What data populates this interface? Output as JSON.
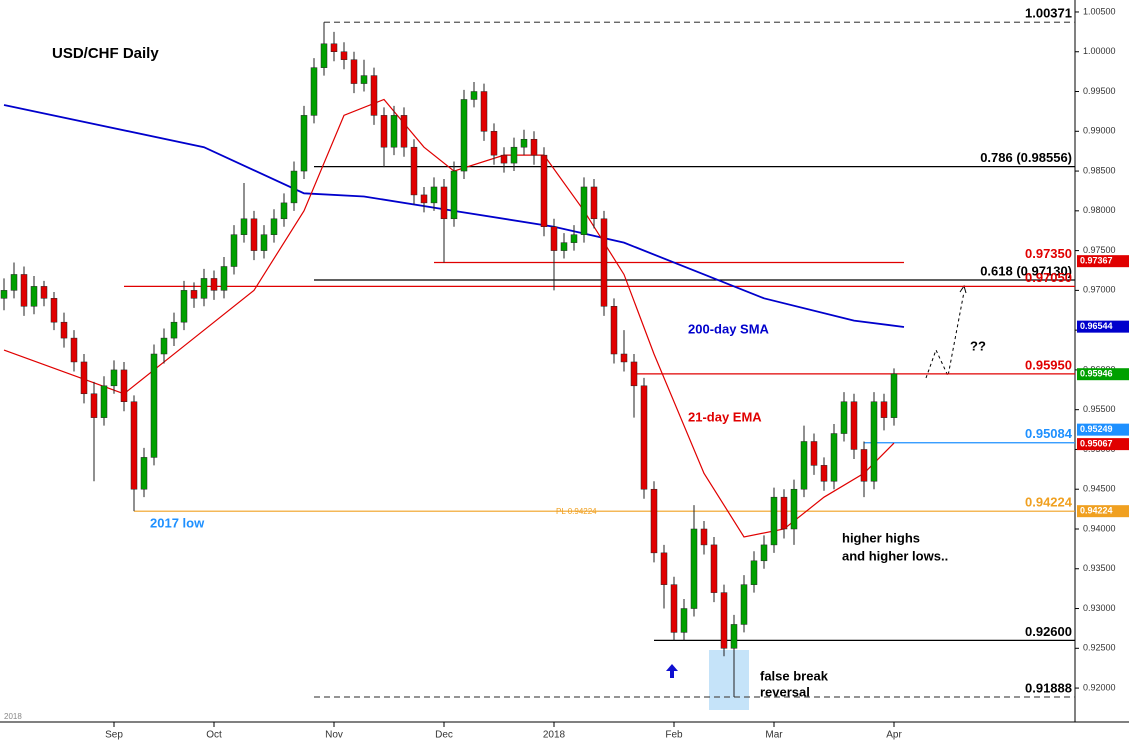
{
  "chart_data": {
    "type": "candlestick",
    "title": "USD/CHF Daily",
    "up_color": "#00a000",
    "down_color": "#e00000",
    "ylim": [
      0.9185,
      1.0055
    ],
    "yticks": [
      {
        "value": 0.92,
        "label": "0.92000"
      },
      {
        "value": 0.925,
        "label": "0.92500"
      },
      {
        "value": 0.93,
        "label": "0.93000"
      },
      {
        "value": 0.935,
        "label": "0.93500"
      },
      {
        "value": 0.94,
        "label": "0.94000"
      },
      {
        "value": 0.945,
        "label": "0.94500"
      },
      {
        "value": 0.95,
        "label": "0.95000"
      },
      {
        "value": 0.955,
        "label": "0.95500"
      },
      {
        "value": 0.96,
        "label": "0.96000"
      },
      {
        "value": 0.965,
        "label": "0.96500"
      },
      {
        "value": 0.97,
        "label": "0.97000"
      },
      {
        "value": 0.975,
        "label": "0.97500"
      },
      {
        "value": 0.98,
        "label": "0.98000"
      },
      {
        "value": 0.985,
        "label": "0.98500"
      },
      {
        "value": 0.99,
        "label": "0.99000"
      },
      {
        "value": 0.995,
        "label": "0.99500"
      },
      {
        "value": 1.0,
        "label": "1.00000"
      },
      {
        "value": 1.005,
        "label": "1.00500"
      }
    ],
    "xticks": [
      {
        "value": 11,
        "label": "Sep"
      },
      {
        "value": 21,
        "label": "Oct"
      },
      {
        "value": 33,
        "label": "Nov"
      },
      {
        "value": 44,
        "label": "Dec"
      },
      {
        "value": 55,
        "label": "2018"
      },
      {
        "value": 67,
        "label": "Feb"
      },
      {
        "value": 77,
        "label": "Mar"
      },
      {
        "value": 89,
        "label": "Apr"
      }
    ],
    "year_label": "2018",
    "ohlc": [
      [
        0.969,
        0.9715,
        0.9675,
        0.97
      ],
      [
        0.97,
        0.9735,
        0.969,
        0.972
      ],
      [
        0.972,
        0.973,
        0.9668,
        0.968
      ],
      [
        0.968,
        0.9718,
        0.967,
        0.9705
      ],
      [
        0.9705,
        0.9712,
        0.968,
        0.969
      ],
      [
        0.969,
        0.9698,
        0.965,
        0.966
      ],
      [
        0.966,
        0.9672,
        0.9628,
        0.964
      ],
      [
        0.964,
        0.965,
        0.9598,
        0.961
      ],
      [
        0.961,
        0.962,
        0.9558,
        0.957
      ],
      [
        0.957,
        0.9585,
        0.946,
        0.954
      ],
      [
        0.954,
        0.9592,
        0.953,
        0.958
      ],
      [
        0.958,
        0.9612,
        0.957,
        0.96
      ],
      [
        0.96,
        0.961,
        0.9548,
        0.956
      ],
      [
        0.956,
        0.9568,
        0.94224,
        0.945
      ],
      [
        0.945,
        0.9502,
        0.944,
        0.949
      ],
      [
        0.949,
        0.9632,
        0.948,
        0.962
      ],
      [
        0.962,
        0.9652,
        0.9608,
        0.964
      ],
      [
        0.964,
        0.9672,
        0.963,
        0.966
      ],
      [
        0.966,
        0.9712,
        0.965,
        0.97
      ],
      [
        0.97,
        0.971,
        0.9678,
        0.969
      ],
      [
        0.969,
        0.9727,
        0.968,
        0.9715
      ],
      [
        0.9715,
        0.9725,
        0.9688,
        0.97
      ],
      [
        0.97,
        0.9742,
        0.969,
        0.973
      ],
      [
        0.973,
        0.9782,
        0.972,
        0.977
      ],
      [
        0.977,
        0.9835,
        0.976,
        0.979
      ],
      [
        0.979,
        0.98,
        0.9738,
        0.975
      ],
      [
        0.975,
        0.9782,
        0.974,
        0.977
      ],
      [
        0.977,
        0.9802,
        0.976,
        0.979
      ],
      [
        0.979,
        0.9822,
        0.978,
        0.981
      ],
      [
        0.981,
        0.9862,
        0.98,
        0.985
      ],
      [
        0.985,
        0.9932,
        0.984,
        0.992
      ],
      [
        0.992,
        0.9992,
        0.991,
        0.998
      ],
      [
        0.998,
        1.00371,
        0.997,
        1.001
      ],
      [
        1.001,
        1.0025,
        0.9988,
        1.0
      ],
      [
        1.0,
        1.0012,
        0.9978,
        0.999
      ],
      [
        0.999,
        1.0,
        0.9948,
        0.996
      ],
      [
        0.996,
        0.999,
        0.995,
        0.997
      ],
      [
        0.997,
        0.998,
        0.9908,
        0.992
      ],
      [
        0.992,
        0.993,
        0.9855,
        0.988
      ],
      [
        0.988,
        0.9932,
        0.987,
        0.992
      ],
      [
        0.992,
        0.993,
        0.9868,
        0.988
      ],
      [
        0.988,
        0.989,
        0.9808,
        0.982
      ],
      [
        0.982,
        0.983,
        0.9798,
        0.981
      ],
      [
        0.981,
        0.9842,
        0.98,
        0.983
      ],
      [
        0.983,
        0.984,
        0.9735,
        0.979
      ],
      [
        0.979,
        0.9862,
        0.978,
        0.985
      ],
      [
        0.985,
        0.9952,
        0.984,
        0.994
      ],
      [
        0.994,
        0.9962,
        0.993,
        0.995
      ],
      [
        0.995,
        0.996,
        0.9888,
        0.99
      ],
      [
        0.99,
        0.991,
        0.9858,
        0.987
      ],
      [
        0.987,
        0.988,
        0.9848,
        0.986
      ],
      [
        0.986,
        0.9892,
        0.985,
        0.988
      ],
      [
        0.988,
        0.9902,
        0.987,
        0.989
      ],
      [
        0.989,
        0.99,
        0.9858,
        0.987
      ],
      [
        0.987,
        0.988,
        0.9768,
        0.978
      ],
      [
        0.978,
        0.979,
        0.97,
        0.975
      ],
      [
        0.975,
        0.9772,
        0.974,
        0.976
      ],
      [
        0.976,
        0.9782,
        0.975,
        0.977
      ],
      [
        0.977,
        0.9842,
        0.976,
        0.983
      ],
      [
        0.983,
        0.984,
        0.9778,
        0.979
      ],
      [
        0.979,
        0.98,
        0.9668,
        0.968
      ],
      [
        0.968,
        0.969,
        0.9608,
        0.962
      ],
      [
        0.962,
        0.965,
        0.9598,
        0.961
      ],
      [
        0.961,
        0.962,
        0.954,
        0.958
      ],
      [
        0.958,
        0.959,
        0.9438,
        0.945
      ],
      [
        0.945,
        0.946,
        0.9358,
        0.937
      ],
      [
        0.937,
        0.938,
        0.93,
        0.933
      ],
      [
        0.933,
        0.934,
        0.926,
        0.927
      ],
      [
        0.927,
        0.9312,
        0.926,
        0.93
      ],
      [
        0.93,
        0.943,
        0.929,
        0.94
      ],
      [
        0.94,
        0.941,
        0.9368,
        0.938
      ],
      [
        0.938,
        0.939,
        0.9308,
        0.932
      ],
      [
        0.932,
        0.933,
        0.924,
        0.925
      ],
      [
        0.925,
        0.9292,
        0.91888,
        0.928
      ],
      [
        0.928,
        0.9342,
        0.927,
        0.933
      ],
      [
        0.933,
        0.9372,
        0.932,
        0.936
      ],
      [
        0.936,
        0.9392,
        0.935,
        0.938
      ],
      [
        0.938,
        0.9452,
        0.937,
        0.944
      ],
      [
        0.944,
        0.945,
        0.9388,
        0.94
      ],
      [
        0.94,
        0.9462,
        0.938,
        0.945
      ],
      [
        0.945,
        0.953,
        0.944,
        0.951
      ],
      [
        0.951,
        0.952,
        0.9468,
        0.948
      ],
      [
        0.948,
        0.949,
        0.9448,
        0.946
      ],
      [
        0.946,
        0.9532,
        0.945,
        0.952
      ],
      [
        0.952,
        0.9572,
        0.951,
        0.956
      ],
      [
        0.956,
        0.957,
        0.9488,
        0.95
      ],
      [
        0.95,
        0.951,
        0.944,
        0.946
      ],
      [
        0.946,
        0.9572,
        0.945,
        0.956
      ],
      [
        0.956,
        0.957,
        0.9524,
        0.954
      ],
      [
        0.954,
        0.9602,
        0.953,
        0.9595
      ]
    ],
    "series": [
      {
        "name": "200-day SMA",
        "color": "#0000cc",
        "x": [
          0,
          20,
          30,
          36,
          45,
          55,
          62,
          70,
          76,
          85,
          90
        ],
        "values": [
          0.9933,
          0.988,
          0.9822,
          0.9818,
          0.98,
          0.978,
          0.976,
          0.972,
          0.969,
          0.9662,
          0.9654
        ]
      },
      {
        "name": "21-day EMA",
        "color": "#e00000",
        "x": [
          0,
          12,
          18,
          25,
          30,
          34,
          38,
          42,
          45,
          50,
          54,
          58,
          62,
          65,
          70,
          74,
          78,
          82,
          86,
          89
        ],
        "values": [
          0.9625,
          0.957,
          0.963,
          0.97,
          0.98,
          0.992,
          0.994,
          0.988,
          0.985,
          0.987,
          0.987,
          0.98,
          0.972,
          0.962,
          0.947,
          0.939,
          0.94,
          0.944,
          0.947,
          0.9508
        ]
      }
    ],
    "levels": [
      {
        "value": 1.00371,
        "label": "1.00371",
        "color": "#555555",
        "from": 32,
        "style": "dashed"
      },
      {
        "value": 0.98556,
        "label": "0.786 (0.98556)",
        "color": "#000000",
        "from": 31
      },
      {
        "value": 0.9735,
        "label": "0.97350",
        "color": "#e00000",
        "from": 43,
        "to": 90
      },
      {
        "value": 0.9713,
        "label": "0.618 (0.97130)",
        "color": "#000000",
        "from": 31
      },
      {
        "value": 0.9705,
        "label": "0.97050",
        "color": "#e00000",
        "from": 12
      },
      {
        "value": 0.9595,
        "label": "0.95950",
        "color": "#e00000",
        "from": 63
      },
      {
        "value": 0.95084,
        "label": "0.95084",
        "color": "#1e90ff",
        "from": 86
      },
      {
        "value": 0.94224,
        "label": "0.94224",
        "color": "#f0a020",
        "from": 13
      },
      {
        "value": 0.926,
        "label": "0.92600",
        "color": "#000000",
        "from": 65
      },
      {
        "value": 0.91888,
        "label": "0.91888",
        "color": "#555555",
        "from": 31,
        "style": "dashed"
      }
    ],
    "price_markers": [
      {
        "value": 0.97367,
        "label": "0.97367",
        "color": "#e00000"
      },
      {
        "value": 0.96544,
        "label": "0.96544",
        "color": "#0000cc"
      },
      {
        "value": 0.95946,
        "label": "0.95946",
        "color": "#00a000"
      },
      {
        "value": 0.95249,
        "label": "0.95249",
        "color": "#1e90ff"
      },
      {
        "value": 0.95067,
        "label": "0.95067",
        "color": "#e00000"
      },
      {
        "value": 0.94224,
        "label": "0.94224",
        "color": "#f0a020"
      }
    ],
    "annotations": {
      "low_2017": "2017 low",
      "pl": "PL 0.94224",
      "higher_1": "higher highs",
      "higher_2": "and higher lows..",
      "false_1": "false break",
      "false_2": "reversal",
      "question": "??"
    }
  }
}
